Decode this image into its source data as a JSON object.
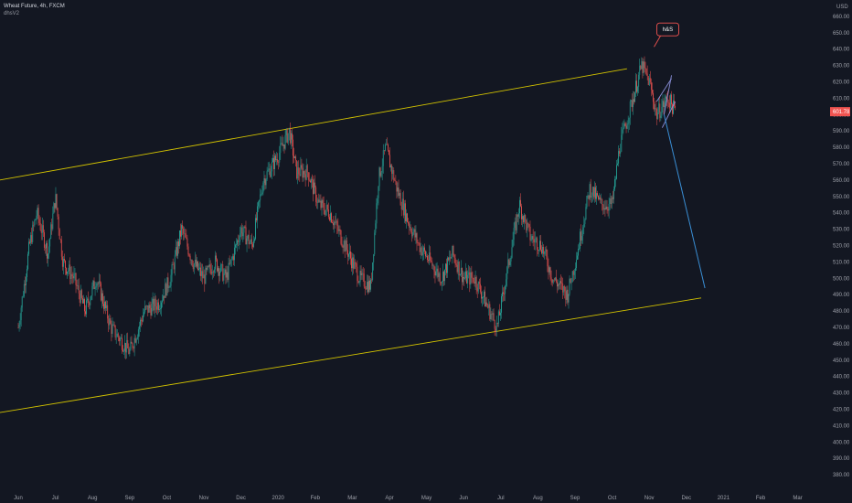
{
  "header": {
    "symbol_line": "Wheat Future, 4h, FXCM",
    "indicator_line": "dhsV2"
  },
  "currency": "USD",
  "current_price": "601.78",
  "colors": {
    "background": "#131722",
    "up": "#26a69a",
    "down": "#ef5350",
    "channel": "#d4c400",
    "projection": "#3a8fd6",
    "pattern": "#8a8fd8",
    "price_tag": "#ef5350"
  },
  "chart_data": {
    "type": "candlestick",
    "title": "Wheat Future, 4h, FXCM",
    "ylim": [
      370,
      670
    ],
    "y_ticks": [
      380,
      390,
      400,
      410,
      420,
      430,
      440,
      450,
      460,
      470,
      480,
      490,
      500,
      510,
      520,
      530,
      540,
      550,
      560,
      570,
      580,
      590,
      600,
      610,
      620,
      630,
      640,
      650,
      660
    ],
    "x_ticks": [
      "Jun",
      "Jul",
      "Aug",
      "Sep",
      "Oct",
      "Nov",
      "Dec",
      "2020",
      "Feb",
      "Mar",
      "Apr",
      "May",
      "Jun",
      "Jul",
      "Aug",
      "Sep",
      "Oct",
      "Nov",
      "Dec",
      "2021",
      "Feb",
      "Mar"
    ],
    "x_tick_index": [
      0,
      1,
      2,
      3,
      4,
      5,
      6,
      7,
      8,
      9,
      10,
      11,
      12,
      13,
      14,
      15,
      16,
      17,
      18,
      19,
      20,
      21
    ],
    "price_path": [
      [
        0,
        470
      ],
      [
        0.3,
        520
      ],
      [
        0.5,
        540
      ],
      [
        0.8,
        515
      ],
      [
        1.0,
        550
      ],
      [
        1.2,
        510
      ],
      [
        1.5,
        500
      ],
      [
        1.8,
        480
      ],
      [
        2.1,
        500
      ],
      [
        2.5,
        470
      ],
      [
        3.0,
        455
      ],
      [
        3.4,
        480
      ],
      [
        3.8,
        485
      ],
      [
        4.1,
        500
      ],
      [
        4.4,
        530
      ],
      [
        4.7,
        510
      ],
      [
        5.0,
        500
      ],
      [
        5.3,
        510
      ],
      [
        5.6,
        500
      ],
      [
        6.0,
        530
      ],
      [
        6.3,
        520
      ],
      [
        6.6,
        560
      ],
      [
        7.0,
        575
      ],
      [
        7.3,
        590
      ],
      [
        7.5,
        565
      ],
      [
        7.8,
        565
      ],
      [
        8.1,
        545
      ],
      [
        8.4,
        540
      ],
      [
        8.8,
        520
      ],
      [
        9.2,
        500
      ],
      [
        9.5,
        495
      ],
      [
        9.7,
        560
      ],
      [
        9.9,
        580
      ],
      [
        10.2,
        555
      ],
      [
        10.5,
        535
      ],
      [
        10.8,
        520
      ],
      [
        11.1,
        510
      ],
      [
        11.4,
        500
      ],
      [
        11.7,
        515
      ],
      [
        12.0,
        500
      ],
      [
        12.3,
        500
      ],
      [
        12.6,
        485
      ],
      [
        12.9,
        470
      ],
      [
        13.1,
        495
      ],
      [
        13.3,
        520
      ],
      [
        13.5,
        545
      ],
      [
        13.8,
        525
      ],
      [
        14.1,
        520
      ],
      [
        14.4,
        500
      ],
      [
        14.8,
        490
      ],
      [
        15.1,
        520
      ],
      [
        15.4,
        555
      ],
      [
        15.7,
        545
      ],
      [
        16.0,
        545
      ],
      [
        16.2,
        580
      ],
      [
        16.5,
        605
      ],
      [
        16.8,
        630
      ],
      [
        17.0,
        620
      ],
      [
        17.2,
        600
      ],
      [
        17.5,
        610
      ],
      [
        17.7,
        602
      ]
    ],
    "channel_upper": [
      [
        -0.5,
        560
      ],
      [
        16.4,
        628
      ]
    ],
    "channel_lower": [
      [
        -0.5,
        418
      ],
      [
        18.4,
        488
      ]
    ],
    "projection_line": [
      [
        17.4,
        600
      ],
      [
        18.5,
        494
      ]
    ],
    "pattern_lines": [
      [
        [
          17.2,
          608
        ],
        [
          17.6,
          622
        ]
      ],
      [
        [
          17.35,
          592
        ],
        [
          17.7,
          608
        ]
      ],
      [
        [
          17.4,
          600
        ],
        [
          17.6,
          624
        ]
      ]
    ],
    "annotations": [
      {
        "text": "h&S",
        "x": 17.5,
        "y": 652
      }
    ]
  }
}
